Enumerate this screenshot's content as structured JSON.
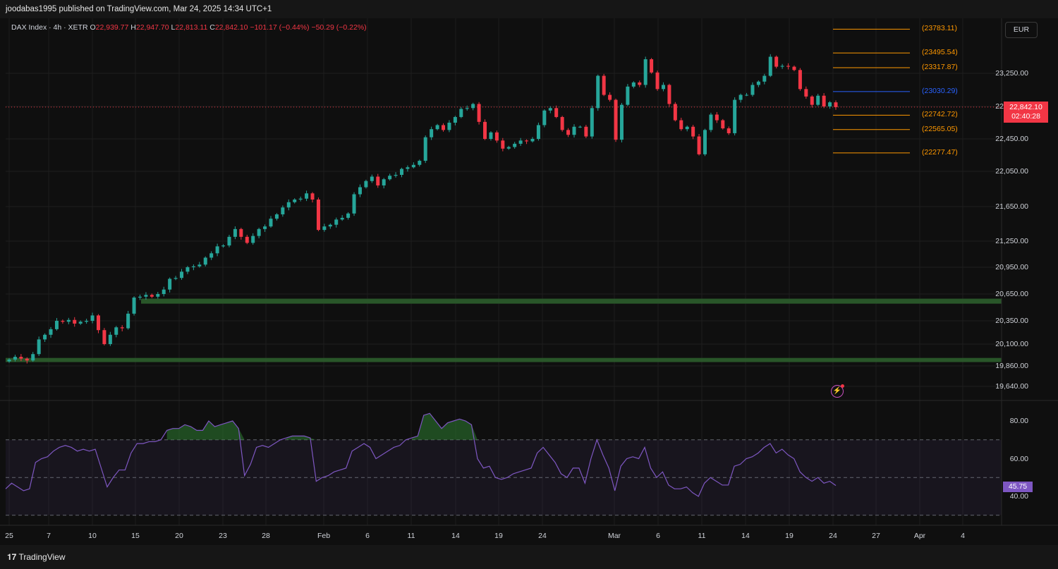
{
  "header": {
    "published": "joodabas1995 published on TradingView.com, Mar 24, 2025 14:34 UTC+1"
  },
  "legend": {
    "symbol": "DAX Index · 4h · XETR",
    "o_label": "O",
    "o": "22,939.77",
    "h_label": "H",
    "h": "22,947.70",
    "l_label": "L",
    "l": "22,813.11",
    "c_label": "C",
    "c": "22,842.10",
    "change": "−101.17 (−0.44%)",
    "change2": "−50.29 (−0.22%)"
  },
  "currency_button": "EUR",
  "price_badge": {
    "price": "22,842.10",
    "countdown": "02:40:28"
  },
  "rsi_badge": "45.75",
  "footer": {
    "logo_text": "TradingView"
  },
  "colors": {
    "up": "#26a69a",
    "down": "#f23645",
    "level": "#ff9800",
    "level_blue": "#2962ff",
    "zone": "#3a7a3a",
    "rsi": "#7e57c2"
  },
  "icons": [
    "tradingview-logo-icon",
    "lightning-bolt-icon"
  ],
  "chart_data": [
    {
      "type": "candlestick",
      "symbol": "DAX Index",
      "interval": "4h",
      "ylim": [
        19500,
        23900
      ],
      "y_ticks": [
        "23,250.00",
        "22,850.00",
        "22,450.00",
        "22,050.00",
        "21,650.00",
        "21,250.00",
        "20,950.00",
        "20,650.00",
        "20,350.00",
        "20,100.00",
        "19,860.00",
        "19,640.00"
      ],
      "x_ticks": [
        "25",
        "7",
        "10",
        "15",
        "20",
        "23",
        "28",
        "Feb",
        "6",
        "11",
        "14",
        "19",
        "24",
        "Mar",
        "6",
        "11",
        "14",
        "19",
        "24",
        "27",
        "Apr",
        "4"
      ],
      "last_price": 22842.1,
      "price_levels": [
        {
          "label": "(23783.11)",
          "value": 23783.11,
          "color": "#ff9800"
        },
        {
          "label": "(23495.54)",
          "value": 23495.54,
          "color": "#ff9800"
        },
        {
          "label": "(23317.87)",
          "value": 23317.87,
          "color": "#ff9800"
        },
        {
          "label": "(23030.29)",
          "value": 23030.29,
          "color": "#2962ff"
        },
        {
          "label": "(22742.72)",
          "value": 22742.72,
          "color": "#ff9800"
        },
        {
          "label": "(22565.05)",
          "value": 22565.05,
          "color": "#ff9800"
        },
        {
          "label": "(22277.47)",
          "value": 22277.47,
          "color": "#ff9800"
        }
      ],
      "support_zones": [
        {
          "low": 20550,
          "high": 20590
        },
        {
          "low": 19910,
          "high": 19940
        }
      ],
      "close_series": [
        19930,
        19960,
        19940,
        19920,
        19990,
        20150,
        20200,
        20260,
        20350,
        20340,
        20360,
        20320,
        20340,
        20350,
        20410,
        20250,
        20100,
        20200,
        20280,
        20270,
        20430,
        20610,
        20620,
        20640,
        20620,
        20650,
        20700,
        20820,
        20830,
        20900,
        20950,
        20960,
        20980,
        21060,
        21110,
        21190,
        21200,
        21300,
        21390,
        21300,
        21230,
        21310,
        21390,
        21420,
        21510,
        21560,
        21640,
        21700,
        21730,
        21740,
        21800,
        21730,
        21380,
        21420,
        21440,
        21500,
        21520,
        21570,
        21790,
        21870,
        21940,
        21990,
        21890,
        21960,
        22000,
        22010,
        22080,
        22100,
        22130,
        22180,
        22470,
        22570,
        22620,
        22560,
        22650,
        22720,
        22820,
        22830,
        22880,
        22660,
        22450,
        22530,
        22430,
        22330,
        22350,
        22390,
        22430,
        22420,
        22450,
        22620,
        22800,
        22830,
        22720,
        22560,
        22500,
        22600,
        22600,
        22480,
        22830,
        23220,
        22990,
        22930,
        22440,
        22870,
        23090,
        23140,
        23110,
        23420,
        23260,
        23060,
        23110,
        22880,
        22680,
        22570,
        22600,
        22480,
        22260,
        22560,
        22750,
        22680,
        22580,
        22520,
        22930,
        22990,
        22990,
        23110,
        23150,
        23220,
        23450,
        23330,
        23340,
        23330,
        23290,
        23060,
        22970,
        22870,
        22980,
        22850,
        22900,
        22842
      ]
    },
    {
      "type": "line",
      "name": "RSI",
      "ylim": [
        25,
        90
      ],
      "y_ticks": [
        "80.00",
        "60.00",
        "40.00"
      ],
      "bands": {
        "upper": 70,
        "middle": 50,
        "lower": 30
      },
      "last_value": 45.75,
      "values": [
        44,
        47,
        45,
        43,
        44,
        58,
        60,
        61,
        64,
        66,
        67,
        66,
        64,
        65,
        64,
        65,
        55,
        45,
        50,
        54,
        54,
        63,
        68,
        68,
        69,
        69,
        70,
        75,
        76,
        76,
        78,
        77,
        75,
        75,
        80,
        77,
        78,
        79,
        80,
        76,
        51,
        57,
        66,
        67,
        66,
        68,
        70,
        71,
        72,
        72,
        72,
        71,
        48,
        50,
        51,
        53,
        54,
        55,
        64,
        66,
        68,
        66,
        60,
        62,
        64,
        66,
        67,
        70,
        71,
        72,
        83,
        84,
        80,
        76,
        79,
        80,
        81,
        80,
        78,
        60,
        55,
        56,
        50,
        49,
        50,
        52,
        53,
        54,
        55,
        63,
        66,
        62,
        58,
        52,
        50,
        55,
        55,
        47,
        60,
        70,
        62,
        55,
        43,
        56,
        60,
        61,
        60,
        66,
        55,
        50,
        53,
        46,
        44,
        44,
        45,
        42,
        40,
        47,
        50,
        48,
        46,
        46,
        56,
        57,
        60,
        61,
        63,
        66,
        68,
        63,
        65,
        62,
        60,
        53,
        50,
        48,
        50,
        47,
        48,
        45.75
      ]
    }
  ]
}
